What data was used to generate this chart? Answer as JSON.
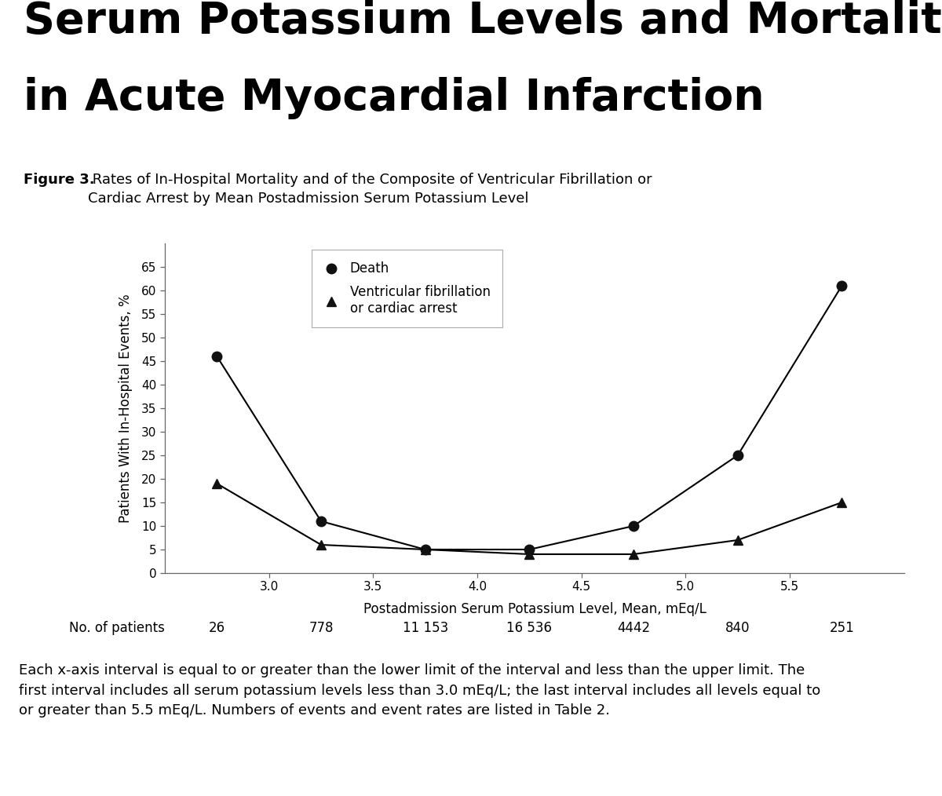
{
  "title_line1": "Serum Potassium Levels and Mortality",
  "title_line2": "in Acute Myocardial Infarction",
  "figure3_bold": "Figure 3.",
  "figure3_normal": " Rates of In-Hospital Mortality and of the Composite of Ventricular Fibrillation or\nCardiac Arrest by Mean Postadmission Serum Potassium Level",
  "xlabel": "Postadmission Serum Potassium Level, Mean, mEq/L",
  "ylabel": "Patients With In-Hospital Events, %",
  "x_death": [
    2.75,
    3.25,
    3.75,
    4.25,
    4.75,
    5.25,
    5.75
  ],
  "y_death": [
    46,
    11,
    5,
    5,
    10,
    25,
    61
  ],
  "x_vf": [
    2.75,
    3.25,
    3.75,
    4.25,
    4.75,
    5.25,
    5.75
  ],
  "y_vf": [
    19,
    6,
    5,
    4,
    4,
    7,
    15
  ],
  "x_ticks": [
    3.0,
    3.5,
    4.0,
    4.5,
    5.0,
    5.5
  ],
  "x_tick_labels": [
    "3.0",
    "3.5",
    "4.0",
    "4.5",
    "5.0",
    "5.5"
  ],
  "y_ticks": [
    0,
    5,
    10,
    15,
    20,
    25,
    30,
    35,
    40,
    45,
    50,
    55,
    60,
    65
  ],
  "y_tick_labels": [
    "0",
    "5",
    "10",
    "15",
    "20",
    "25",
    "30",
    "35",
    "40",
    "45",
    "50",
    "55",
    "60",
    "65"
  ],
  "ylim": [
    0,
    70
  ],
  "xlim": [
    2.5,
    6.05
  ],
  "patient_counts_x": [
    2.75,
    3.25,
    3.75,
    4.25,
    4.75,
    5.25,
    5.75
  ],
  "patient_counts": [
    "26",
    "778",
    "11 153",
    "16 536",
    "4442",
    "840",
    "251"
  ],
  "patient_label": "No. of patients",
  "legend_death": "Death",
  "legend_vf": "Ventricular fibrillation\nor cardiac arrest",
  "footnote": "Each x-axis interval is equal to or greater than the lower limit of the interval and less than the upper limit. The\nfirst interval includes all serum potassium levels less than 3.0 mEq/L; the last interval includes all levels equal to\nor greater than 5.5 mEq/L. Numbers of events and event rates are listed in Table 2.",
  "bg_color": "#ffffff",
  "line_color": "#000000",
  "marker_color": "#111111",
  "title_fontsize": 40,
  "caption_fontsize": 13,
  "axis_label_fontsize": 12,
  "tick_fontsize": 11,
  "legend_fontsize": 12,
  "patient_fontsize": 12,
  "footnote_fontsize": 13
}
